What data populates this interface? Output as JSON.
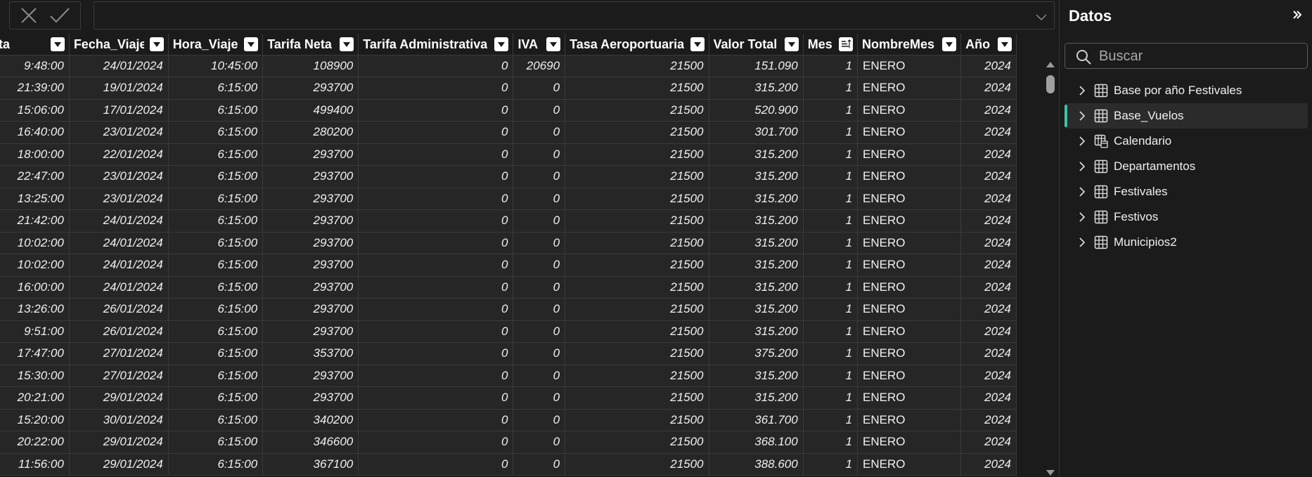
{
  "formula_bar": {
    "cancel_icon": "close-icon",
    "confirm_icon": "checkmark-icon",
    "value": ""
  },
  "table": {
    "columns": [
      "a_Venta",
      "Fecha_Viaje",
      "Hora_Viaje",
      "Tarifa Neta",
      "Tarifa Administrativa",
      "IVA",
      "Tasa Aeroportuaria",
      "Valor Total",
      "Mes",
      "NombreMes",
      "Año"
    ],
    "rows": [
      [
        "9:48:00",
        "24/01/2024",
        "10:45:00",
        "108900",
        "0",
        "20690",
        "21500",
        "151.090",
        "1",
        "ENERO",
        "2024"
      ],
      [
        "21:39:00",
        "19/01/2024",
        "6:15:00",
        "293700",
        "0",
        "0",
        "21500",
        "315.200",
        "1",
        "ENERO",
        "2024"
      ],
      [
        "15:06:00",
        "17/01/2024",
        "6:15:00",
        "499400",
        "0",
        "0",
        "21500",
        "520.900",
        "1",
        "ENERO",
        "2024"
      ],
      [
        "16:40:00",
        "23/01/2024",
        "6:15:00",
        "280200",
        "0",
        "0",
        "21500",
        "301.700",
        "1",
        "ENERO",
        "2024"
      ],
      [
        "18:00:00",
        "22/01/2024",
        "6:15:00",
        "293700",
        "0",
        "0",
        "21500",
        "315.200",
        "1",
        "ENERO",
        "2024"
      ],
      [
        "22:47:00",
        "23/01/2024",
        "6:15:00",
        "293700",
        "0",
        "0",
        "21500",
        "315.200",
        "1",
        "ENERO",
        "2024"
      ],
      [
        "13:25:00",
        "23/01/2024",
        "6:15:00",
        "293700",
        "0",
        "0",
        "21500",
        "315.200",
        "1",
        "ENERO",
        "2024"
      ],
      [
        "21:42:00",
        "24/01/2024",
        "6:15:00",
        "293700",
        "0",
        "0",
        "21500",
        "315.200",
        "1",
        "ENERO",
        "2024"
      ],
      [
        "10:02:00",
        "24/01/2024",
        "6:15:00",
        "293700",
        "0",
        "0",
        "21500",
        "315.200",
        "1",
        "ENERO",
        "2024"
      ],
      [
        "10:02:00",
        "24/01/2024",
        "6:15:00",
        "293700",
        "0",
        "0",
        "21500",
        "315.200",
        "1",
        "ENERO",
        "2024"
      ],
      [
        "16:00:00",
        "24/01/2024",
        "6:15:00",
        "293700",
        "0",
        "0",
        "21500",
        "315.200",
        "1",
        "ENERO",
        "2024"
      ],
      [
        "13:26:00",
        "26/01/2024",
        "6:15:00",
        "293700",
        "0",
        "0",
        "21500",
        "315.200",
        "1",
        "ENERO",
        "2024"
      ],
      [
        "9:51:00",
        "26/01/2024",
        "6:15:00",
        "293700",
        "0",
        "0",
        "21500",
        "315.200",
        "1",
        "ENERO",
        "2024"
      ],
      [
        "17:47:00",
        "27/01/2024",
        "6:15:00",
        "353700",
        "0",
        "0",
        "21500",
        "375.200",
        "1",
        "ENERO",
        "2024"
      ],
      [
        "15:30:00",
        "27/01/2024",
        "6:15:00",
        "293700",
        "0",
        "0",
        "21500",
        "315.200",
        "1",
        "ENERO",
        "2024"
      ],
      [
        "20:21:00",
        "29/01/2024",
        "6:15:00",
        "293700",
        "0",
        "0",
        "21500",
        "315.200",
        "1",
        "ENERO",
        "2024"
      ],
      [
        "15:20:00",
        "30/01/2024",
        "6:15:00",
        "340200",
        "0",
        "0",
        "21500",
        "361.700",
        "1",
        "ENERO",
        "2024"
      ],
      [
        "20:22:00",
        "29/01/2024",
        "6:15:00",
        "346600",
        "0",
        "0",
        "21500",
        "368.100",
        "1",
        "ENERO",
        "2024"
      ],
      [
        "11:56:00",
        "29/01/2024",
        "6:15:00",
        "367100",
        "0",
        "0",
        "21500",
        "388.600",
        "1",
        "ENERO",
        "2024"
      ]
    ]
  },
  "data_pane": {
    "title": "Datos",
    "collapse_icon": "double-chevron-right-icon",
    "search": {
      "placeholder": "Buscar",
      "value": ""
    },
    "tables": [
      {
        "name": "Base por año Festivales",
        "icon": "table-icon",
        "selected": false
      },
      {
        "name": "Base_Vuelos",
        "icon": "table-icon",
        "selected": true
      },
      {
        "name": "Calendario",
        "icon": "calendar-table-icon",
        "selected": false
      },
      {
        "name": "Departamentos",
        "icon": "table-icon",
        "selected": false
      },
      {
        "name": "Festivales",
        "icon": "table-icon",
        "selected": false
      },
      {
        "name": "Festivos",
        "icon": "table-icon",
        "selected": false
      },
      {
        "name": "Municipios2",
        "icon": "table-icon",
        "selected": false
      }
    ]
  },
  "colors": {
    "accent": "#3fc1a5",
    "background": "#1b1b1b",
    "cell_background": "#262626",
    "grid_line": "#3a3a3a"
  }
}
